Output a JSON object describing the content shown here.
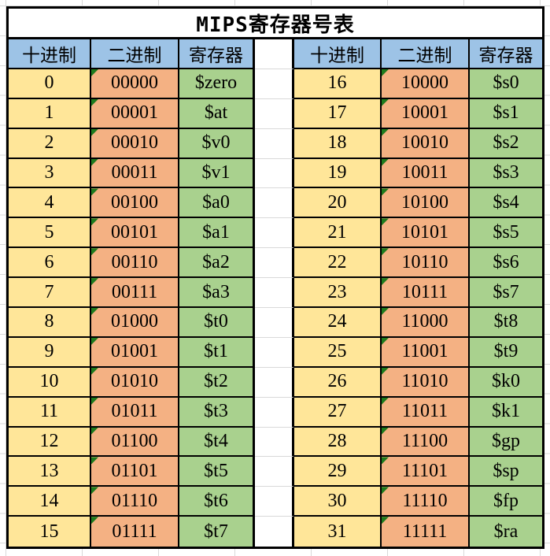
{
  "title": "MIPS寄存器号表",
  "columns": {
    "decimal": "十进制",
    "binary": "二进制",
    "register": "寄存器"
  },
  "colors": {
    "header-blue": "#9dc3e6",
    "dec-yellow": "#ffe699",
    "bin-orange": "#f4b183",
    "reg-green": "#a9d18e",
    "indicator-green": "#1e7b1e",
    "border-black": "#000000",
    "gridline-gray": "#d9d9d9"
  },
  "left_rows": [
    {
      "dec": "0",
      "bin": "00000",
      "reg": "$zero"
    },
    {
      "dec": "1",
      "bin": "00001",
      "reg": "$at"
    },
    {
      "dec": "2",
      "bin": "00010",
      "reg": "$v0"
    },
    {
      "dec": "3",
      "bin": "00011",
      "reg": "$v1"
    },
    {
      "dec": "4",
      "bin": "00100",
      "reg": "$a0"
    },
    {
      "dec": "5",
      "bin": "00101",
      "reg": "$a1"
    },
    {
      "dec": "6",
      "bin": "00110",
      "reg": "$a2"
    },
    {
      "dec": "7",
      "bin": "00111",
      "reg": "$a3"
    },
    {
      "dec": "8",
      "bin": "01000",
      "reg": "$t0"
    },
    {
      "dec": "9",
      "bin": "01001",
      "reg": "$t1"
    },
    {
      "dec": "10",
      "bin": "01010",
      "reg": "$t2"
    },
    {
      "dec": "11",
      "bin": "01011",
      "reg": "$t3"
    },
    {
      "dec": "12",
      "bin": "01100",
      "reg": "$t4"
    },
    {
      "dec": "13",
      "bin": "01101",
      "reg": "$t5"
    },
    {
      "dec": "14",
      "bin": "01110",
      "reg": "$t6"
    },
    {
      "dec": "15",
      "bin": "01111",
      "reg": "$t7"
    }
  ],
  "right_rows": [
    {
      "dec": "16",
      "bin": "10000",
      "reg": "$s0"
    },
    {
      "dec": "17",
      "bin": "10001",
      "reg": "$s1"
    },
    {
      "dec": "18",
      "bin": "10010",
      "reg": "$s2"
    },
    {
      "dec": "19",
      "bin": "10011",
      "reg": "$s3"
    },
    {
      "dec": "20",
      "bin": "10100",
      "reg": "$s4"
    },
    {
      "dec": "21",
      "bin": "10101",
      "reg": "$s5"
    },
    {
      "dec": "22",
      "bin": "10110",
      "reg": "$s6"
    },
    {
      "dec": "23",
      "bin": "10111",
      "reg": "$s7"
    },
    {
      "dec": "24",
      "bin": "11000",
      "reg": "$t8"
    },
    {
      "dec": "25",
      "bin": "11001",
      "reg": "$t9"
    },
    {
      "dec": "26",
      "bin": "11010",
      "reg": "$k0"
    },
    {
      "dec": "27",
      "bin": "11011",
      "reg": "$k1"
    },
    {
      "dec": "28",
      "bin": "11100",
      "reg": "$gp"
    },
    {
      "dec": "29",
      "bin": "11101",
      "reg": "$sp"
    },
    {
      "dec": "30",
      "bin": "11110",
      "reg": "$fp"
    },
    {
      "dec": "31",
      "bin": "11111",
      "reg": "$ra"
    }
  ]
}
